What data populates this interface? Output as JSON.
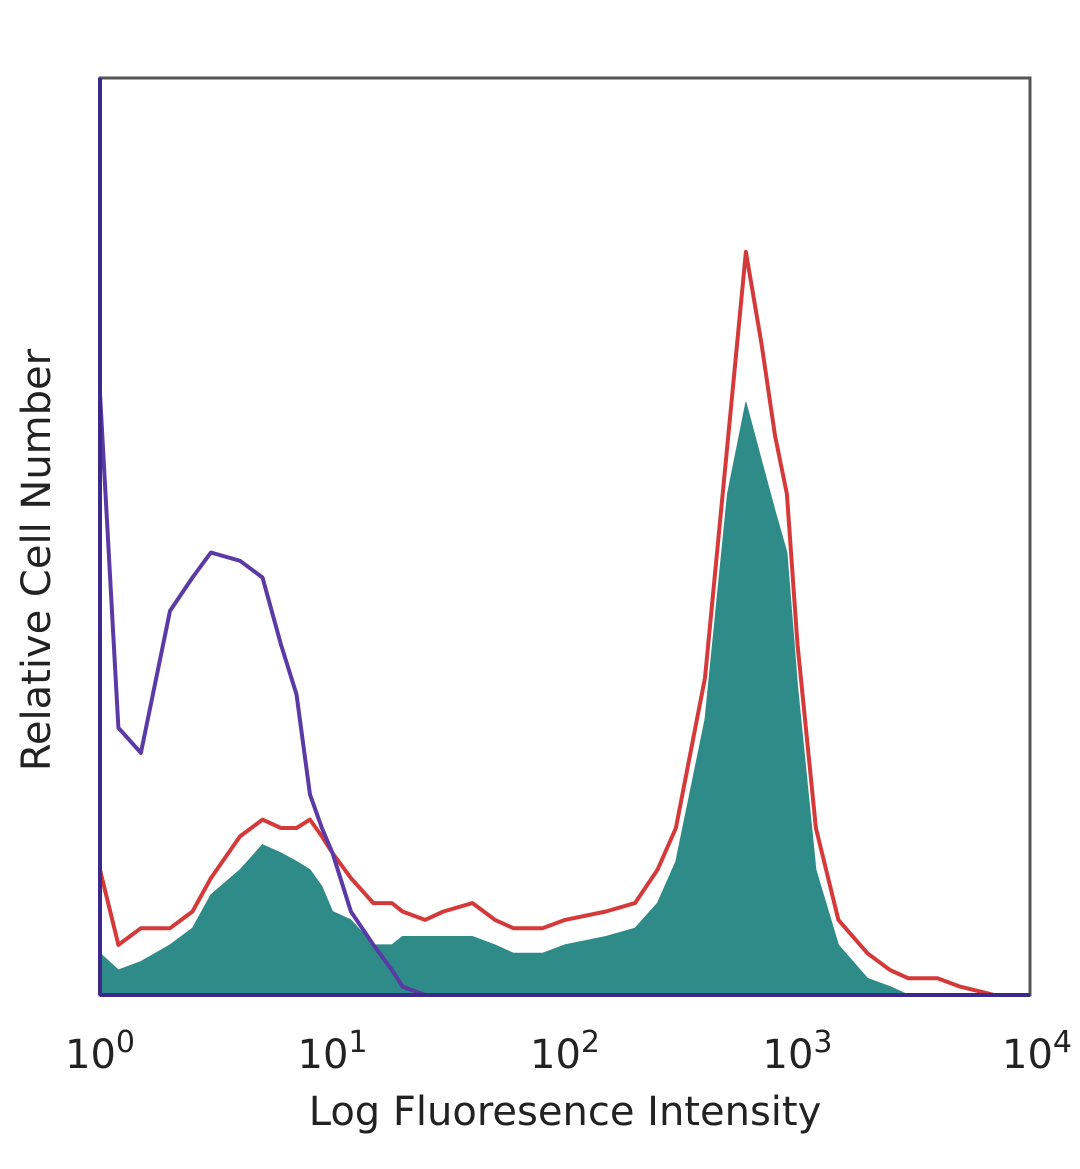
{
  "chart_data": {
    "type": "area",
    "title": "",
    "xlabel": "Log Fluoresence Intensity",
    "ylabel": "Relative Cell Number",
    "x_scale": "log",
    "xlim": [
      1,
      10000
    ],
    "ylim": [
      0,
      100
    ],
    "grid": false,
    "legend": "none",
    "x_ticks": [
      {
        "value": 1,
        "base": "10",
        "exp": "0"
      },
      {
        "value": 10,
        "base": "10",
        "exp": "1"
      },
      {
        "value": 100,
        "base": "10",
        "exp": "2"
      },
      {
        "value": 1000,
        "base": "10",
        "exp": "3"
      },
      {
        "value": 10000,
        "base": "10",
        "exp": "4"
      }
    ],
    "x": [
      1.0,
      1.2,
      1.5,
      2.0,
      2.5,
      3.0,
      4.0,
      5.0,
      6.0,
      7.0,
      8.0,
      9.0,
      10,
      12,
      15,
      18,
      20,
      25,
      30,
      40,
      50,
      60,
      80,
      100,
      150,
      200,
      250,
      300,
      400,
      500,
      600,
      700,
      800,
      900,
      1000,
      1200,
      1500,
      2000,
      2500,
      3000,
      4000,
      5000,
      7000,
      10000
    ],
    "series": [
      {
        "color": "#d43a3a",
        "style": "line",
        "values": [
          15,
          6,
          8,
          8,
          10,
          14,
          19,
          21,
          20,
          20,
          21,
          19,
          17,
          14,
          11,
          11,
          10,
          9,
          10,
          11,
          9,
          8,
          8,
          9,
          10,
          11,
          15,
          20,
          38,
          66,
          89,
          78,
          67,
          60,
          42,
          20,
          9,
          5,
          3,
          2,
          2,
          1,
          0,
          0
        ]
      },
      {
        "color": "#2e8b88",
        "style": "filled",
        "values": [
          5,
          3,
          4,
          6,
          8,
          12,
          15,
          18,
          17,
          16,
          15,
          13,
          10,
          9,
          6,
          6,
          7,
          7,
          7,
          7,
          6,
          5,
          5,
          6,
          7,
          8,
          11,
          16,
          33,
          60,
          71,
          64,
          58,
          53,
          37,
          15,
          6,
          2,
          1,
          0,
          0,
          0,
          0,
          0
        ]
      },
      {
        "color": "#5b3aa6",
        "style": "line",
        "values": [
          72,
          32,
          29,
          46,
          50,
          53,
          52,
          50,
          42,
          36,
          24,
          20,
          17,
          10,
          6,
          3,
          1,
          0,
          0,
          0,
          0,
          0,
          0,
          0,
          0,
          0,
          0,
          0,
          0,
          0,
          0,
          0,
          0,
          0,
          0,
          0,
          0,
          0,
          0,
          0,
          0,
          0,
          0,
          0
        ]
      }
    ]
  },
  "colors": {
    "frame": "#555555",
    "baseline": "#3b2a8a",
    "fill": "#2e8b88",
    "red_overlay": "#d43a3a",
    "purple_control": "#5b3aa6"
  }
}
